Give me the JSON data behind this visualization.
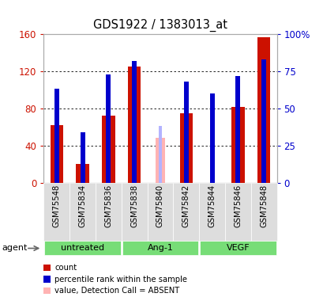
{
  "title": "GDS1922 / 1383013_at",
  "samples": [
    "GSM75548",
    "GSM75834",
    "GSM75836",
    "GSM75838",
    "GSM75840",
    "GSM75842",
    "GSM75844",
    "GSM75846",
    "GSM75848"
  ],
  "count_values": [
    62,
    20,
    72,
    125,
    0,
    75,
    0,
    82,
    157
  ],
  "rank_values": [
    63,
    34,
    73,
    82,
    0,
    68,
    60,
    72,
    83
  ],
  "absent_count": [
    0,
    0,
    0,
    0,
    48,
    0,
    0,
    0,
    0
  ],
  "absent_rank": [
    0,
    0,
    0,
    0,
    38,
    0,
    0,
    0,
    0
  ],
  "absent_flags": [
    false,
    false,
    false,
    false,
    true,
    false,
    false,
    false,
    false
  ],
  "ylim_left": [
    0,
    160
  ],
  "ylim_right": [
    0,
    100
  ],
  "left_ticks": [
    0,
    40,
    80,
    120,
    160
  ],
  "right_ticks": [
    0,
    25,
    50,
    75,
    100
  ],
  "left_tick_labels": [
    "0",
    "40",
    "80",
    "120",
    "160"
  ],
  "right_tick_labels": [
    "0",
    "25",
    "50",
    "75",
    "100%"
  ],
  "count_color": "#cc1100",
  "rank_color": "#0000cc",
  "absent_count_color": "#ffb3b3",
  "absent_rank_color": "#b3b3ff",
  "grid_color": "#000000",
  "bg_color": "#ffffff",
  "group_data": [
    [
      0,
      2,
      "untreated"
    ],
    [
      3,
      5,
      "Ang-1"
    ],
    [
      6,
      8,
      "VEGF"
    ]
  ],
  "group_color": "#77dd77",
  "bar_width": 0.5,
  "rank_bar_width": 0.18,
  "absent_bar_width": 0.35,
  "absent_rank_bar_width": 0.13
}
